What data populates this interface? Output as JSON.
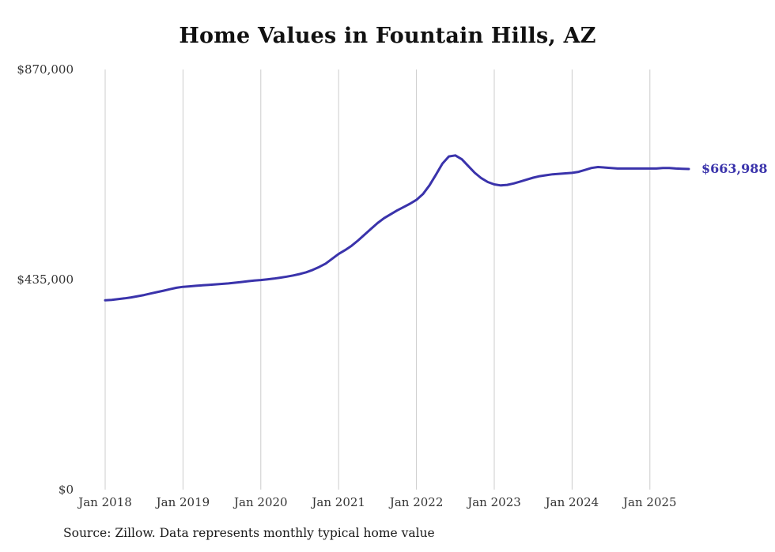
{
  "title": "Home Values in Fountain Hills, AZ",
  "source": "Source: Zillow. Data represents monthly typical home value",
  "end_label": "$663,988",
  "colors": {
    "line": "#3a33ab",
    "grid": "#cccccc",
    "tick_text": "#333333",
    "title": "#111111",
    "end_label": "#3a33ab"
  },
  "chart_data": {
    "type": "line",
    "title": "Home Values in Fountain Hills, AZ",
    "xlabel": "",
    "ylabel": "",
    "ylim": [
      0,
      870000
    ],
    "grid": "vertical-only",
    "legend": "none",
    "y_ticks": [
      {
        "label": "$870,000",
        "value": 870000
      },
      {
        "label": "$435,000",
        "value": 435000
      },
      {
        "label": "$0",
        "value": 0
      }
    ],
    "x_ticks": [
      {
        "label": "Jan 2018",
        "x": "2018-01"
      },
      {
        "label": "Jan 2019",
        "x": "2019-01"
      },
      {
        "label": "Jan 2020",
        "x": "2020-01"
      },
      {
        "label": "Jan 2021",
        "x": "2021-01"
      },
      {
        "label": "Jan 2022",
        "x": "2022-01"
      },
      {
        "label": "Jan 2023",
        "x": "2023-01"
      },
      {
        "label": "Jan 2024",
        "x": "2024-01"
      },
      {
        "label": "Jan 2025",
        "x": "2025-01"
      }
    ],
    "x": [
      "2018-01",
      "2018-02",
      "2018-03",
      "2018-04",
      "2018-05",
      "2018-06",
      "2018-07",
      "2018-08",
      "2018-09",
      "2018-10",
      "2018-11",
      "2018-12",
      "2019-01",
      "2019-02",
      "2019-03",
      "2019-04",
      "2019-05",
      "2019-06",
      "2019-07",
      "2019-08",
      "2019-09",
      "2019-10",
      "2019-11",
      "2019-12",
      "2020-01",
      "2020-02",
      "2020-03",
      "2020-04",
      "2020-05",
      "2020-06",
      "2020-07",
      "2020-08",
      "2020-09",
      "2020-10",
      "2020-11",
      "2020-12",
      "2021-01",
      "2021-02",
      "2021-03",
      "2021-04",
      "2021-05",
      "2021-06",
      "2021-07",
      "2021-08",
      "2021-09",
      "2021-10",
      "2021-11",
      "2021-12",
      "2022-01",
      "2022-02",
      "2022-03",
      "2022-04",
      "2022-05",
      "2022-06",
      "2022-07",
      "2022-08",
      "2022-09",
      "2022-10",
      "2022-11",
      "2022-12",
      "2023-01",
      "2023-02",
      "2023-03",
      "2023-04",
      "2023-05",
      "2023-06",
      "2023-07",
      "2023-08",
      "2023-09",
      "2023-10",
      "2023-11",
      "2023-12",
      "2024-01",
      "2024-02",
      "2024-03",
      "2024-04",
      "2024-05",
      "2024-06",
      "2024-07",
      "2024-08",
      "2024-09",
      "2024-10",
      "2024-11",
      "2024-12",
      "2025-01",
      "2025-02",
      "2025-03",
      "2025-04",
      "2025-05",
      "2025-06",
      "2025-07"
    ],
    "values": [
      392000,
      393000,
      394500,
      396000,
      398000,
      400500,
      403000,
      406000,
      409000,
      412000,
      415000,
      418000,
      420000,
      421000,
      422000,
      423000,
      424000,
      425000,
      426000,
      427000,
      428500,
      430000,
      431500,
      433000,
      434000,
      435500,
      437000,
      439000,
      441000,
      443500,
      446500,
      450000,
      455000,
      461000,
      468000,
      478000,
      488000,
      496000,
      505000,
      516000,
      528000,
      540000,
      552000,
      562000,
      570000,
      578000,
      585000,
      592000,
      600000,
      612000,
      630000,
      652000,
      675000,
      690000,
      692000,
      684000,
      670000,
      656000,
      645000,
      637000,
      632000,
      630000,
      631000,
      634000,
      638000,
      642000,
      646000,
      649000,
      651000,
      653000,
      654000,
      655000,
      656000,
      658000,
      662000,
      666000,
      668000,
      667000,
      666000,
      665000,
      665000,
      665000,
      665000,
      665000,
      665000,
      665000,
      666000,
      666000,
      665000,
      664500,
      663988
    ],
    "final_value": 663988,
    "final_value_label": "$663,988"
  }
}
